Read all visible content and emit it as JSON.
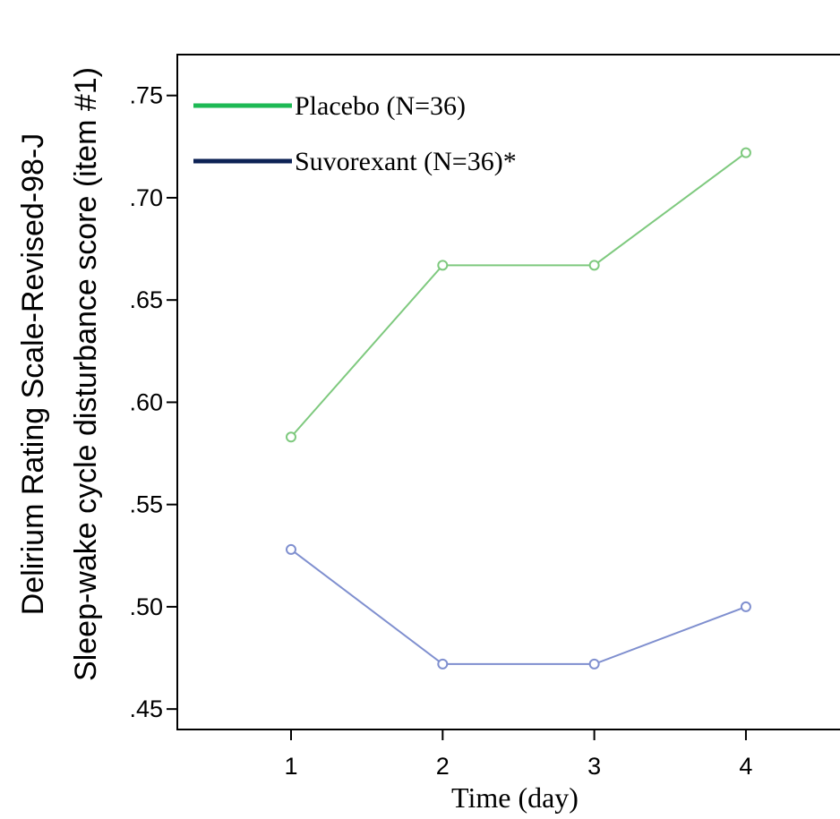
{
  "chart_data": {
    "type": "line",
    "xlabel": "Time (day)",
    "ylabel_lines": [
      "Delirium Rating Scale-Revised-98-J",
      "Sleep-wake cycle disturbance score (item #1)"
    ],
    "x": [
      1,
      2,
      3,
      4
    ],
    "x_tick_labels": [
      "1",
      "2",
      "3",
      "4"
    ],
    "xlim": [
      0.25,
      4.65
    ],
    "ylim": [
      0.44,
      0.77
    ],
    "y_ticks": [
      0.45,
      0.5,
      0.55,
      0.6,
      0.65,
      0.7,
      0.75
    ],
    "y_tick_labels": [
      ".45",
      ".50",
      ".55",
      ".60",
      ".65",
      ".70",
      ".75"
    ],
    "grid": false,
    "legend_position": "top-left",
    "series": [
      {
        "name": "Placebo (N=36)",
        "values": [
          0.583,
          0.667,
          0.667,
          0.722
        ],
        "line_color": "#7ec97e",
        "legend_color": "#1db954",
        "marker": "open-circle"
      },
      {
        "name": "Suvorexant (N=36)*",
        "values": [
          0.528,
          0.472,
          0.472,
          0.5
        ],
        "line_color": "#7f8fcf",
        "legend_color": "#0d2255",
        "marker": "open-circle"
      }
    ]
  }
}
